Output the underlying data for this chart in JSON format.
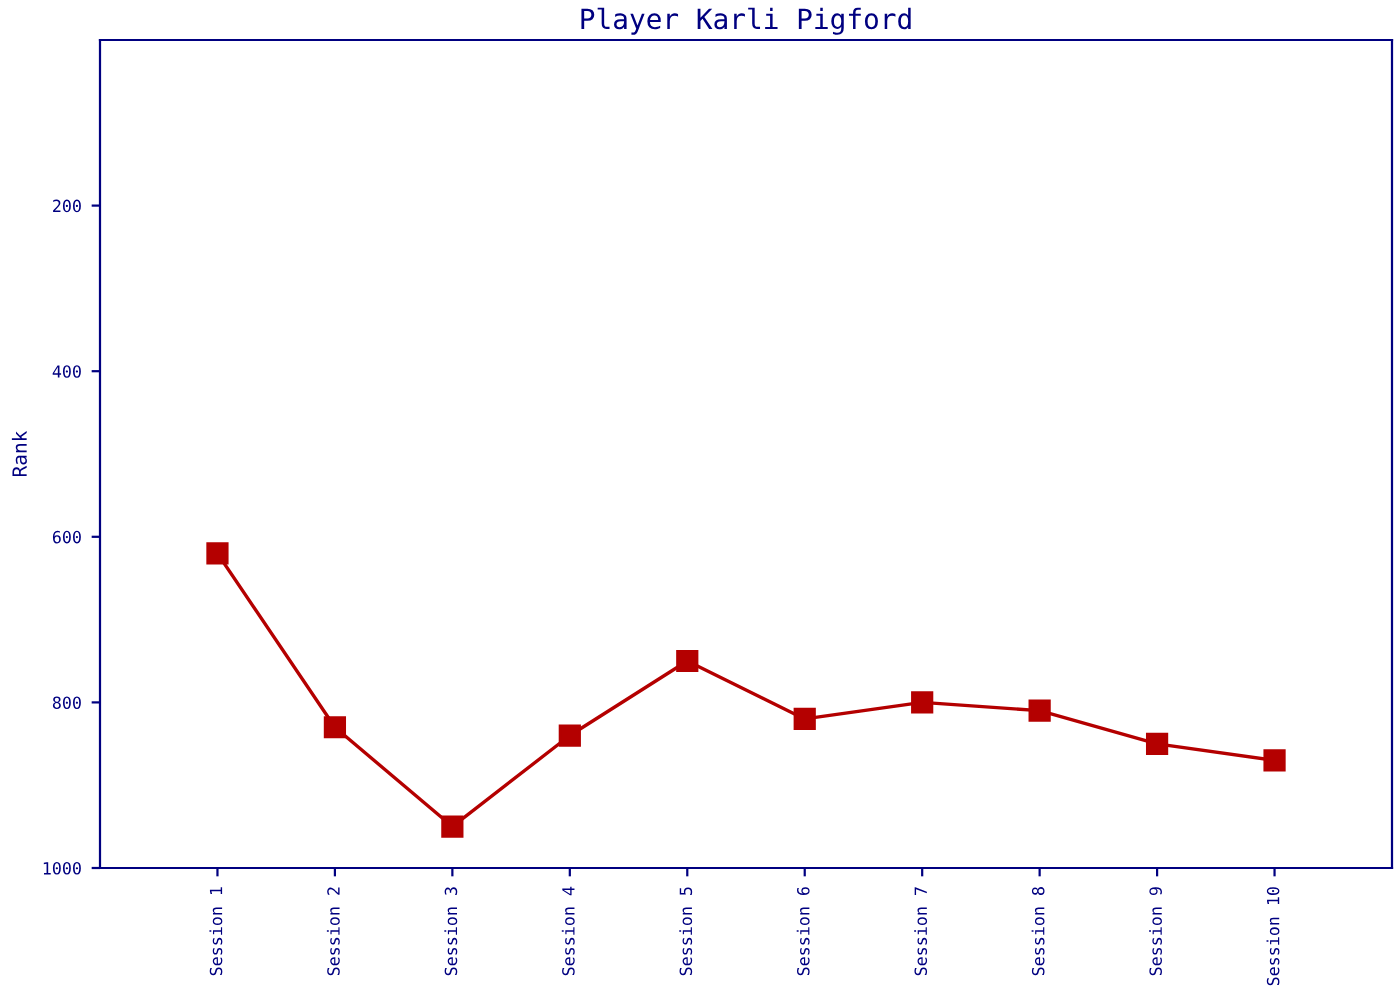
{
  "chart_data": {
    "type": "line",
    "title": "Player Karli Pigford",
    "ylabel": "Rank",
    "categories": [
      "Session 1",
      "Session 2",
      "Session 3",
      "Session 4",
      "Session 5",
      "Session 6",
      "Session 7",
      "Session 8",
      "Session 9",
      "Session 10"
    ],
    "series": [
      {
        "color": "#b40000",
        "values": [
          620,
          830,
          950,
          840,
          750,
          820,
          800,
          810,
          850,
          870
        ]
      }
    ],
    "ylim": [
      1000,
      0
    ],
    "yticks": [
      200,
      400,
      600,
      800,
      1000
    ],
    "grid": false,
    "marker": "square",
    "line_style": "solid"
  }
}
